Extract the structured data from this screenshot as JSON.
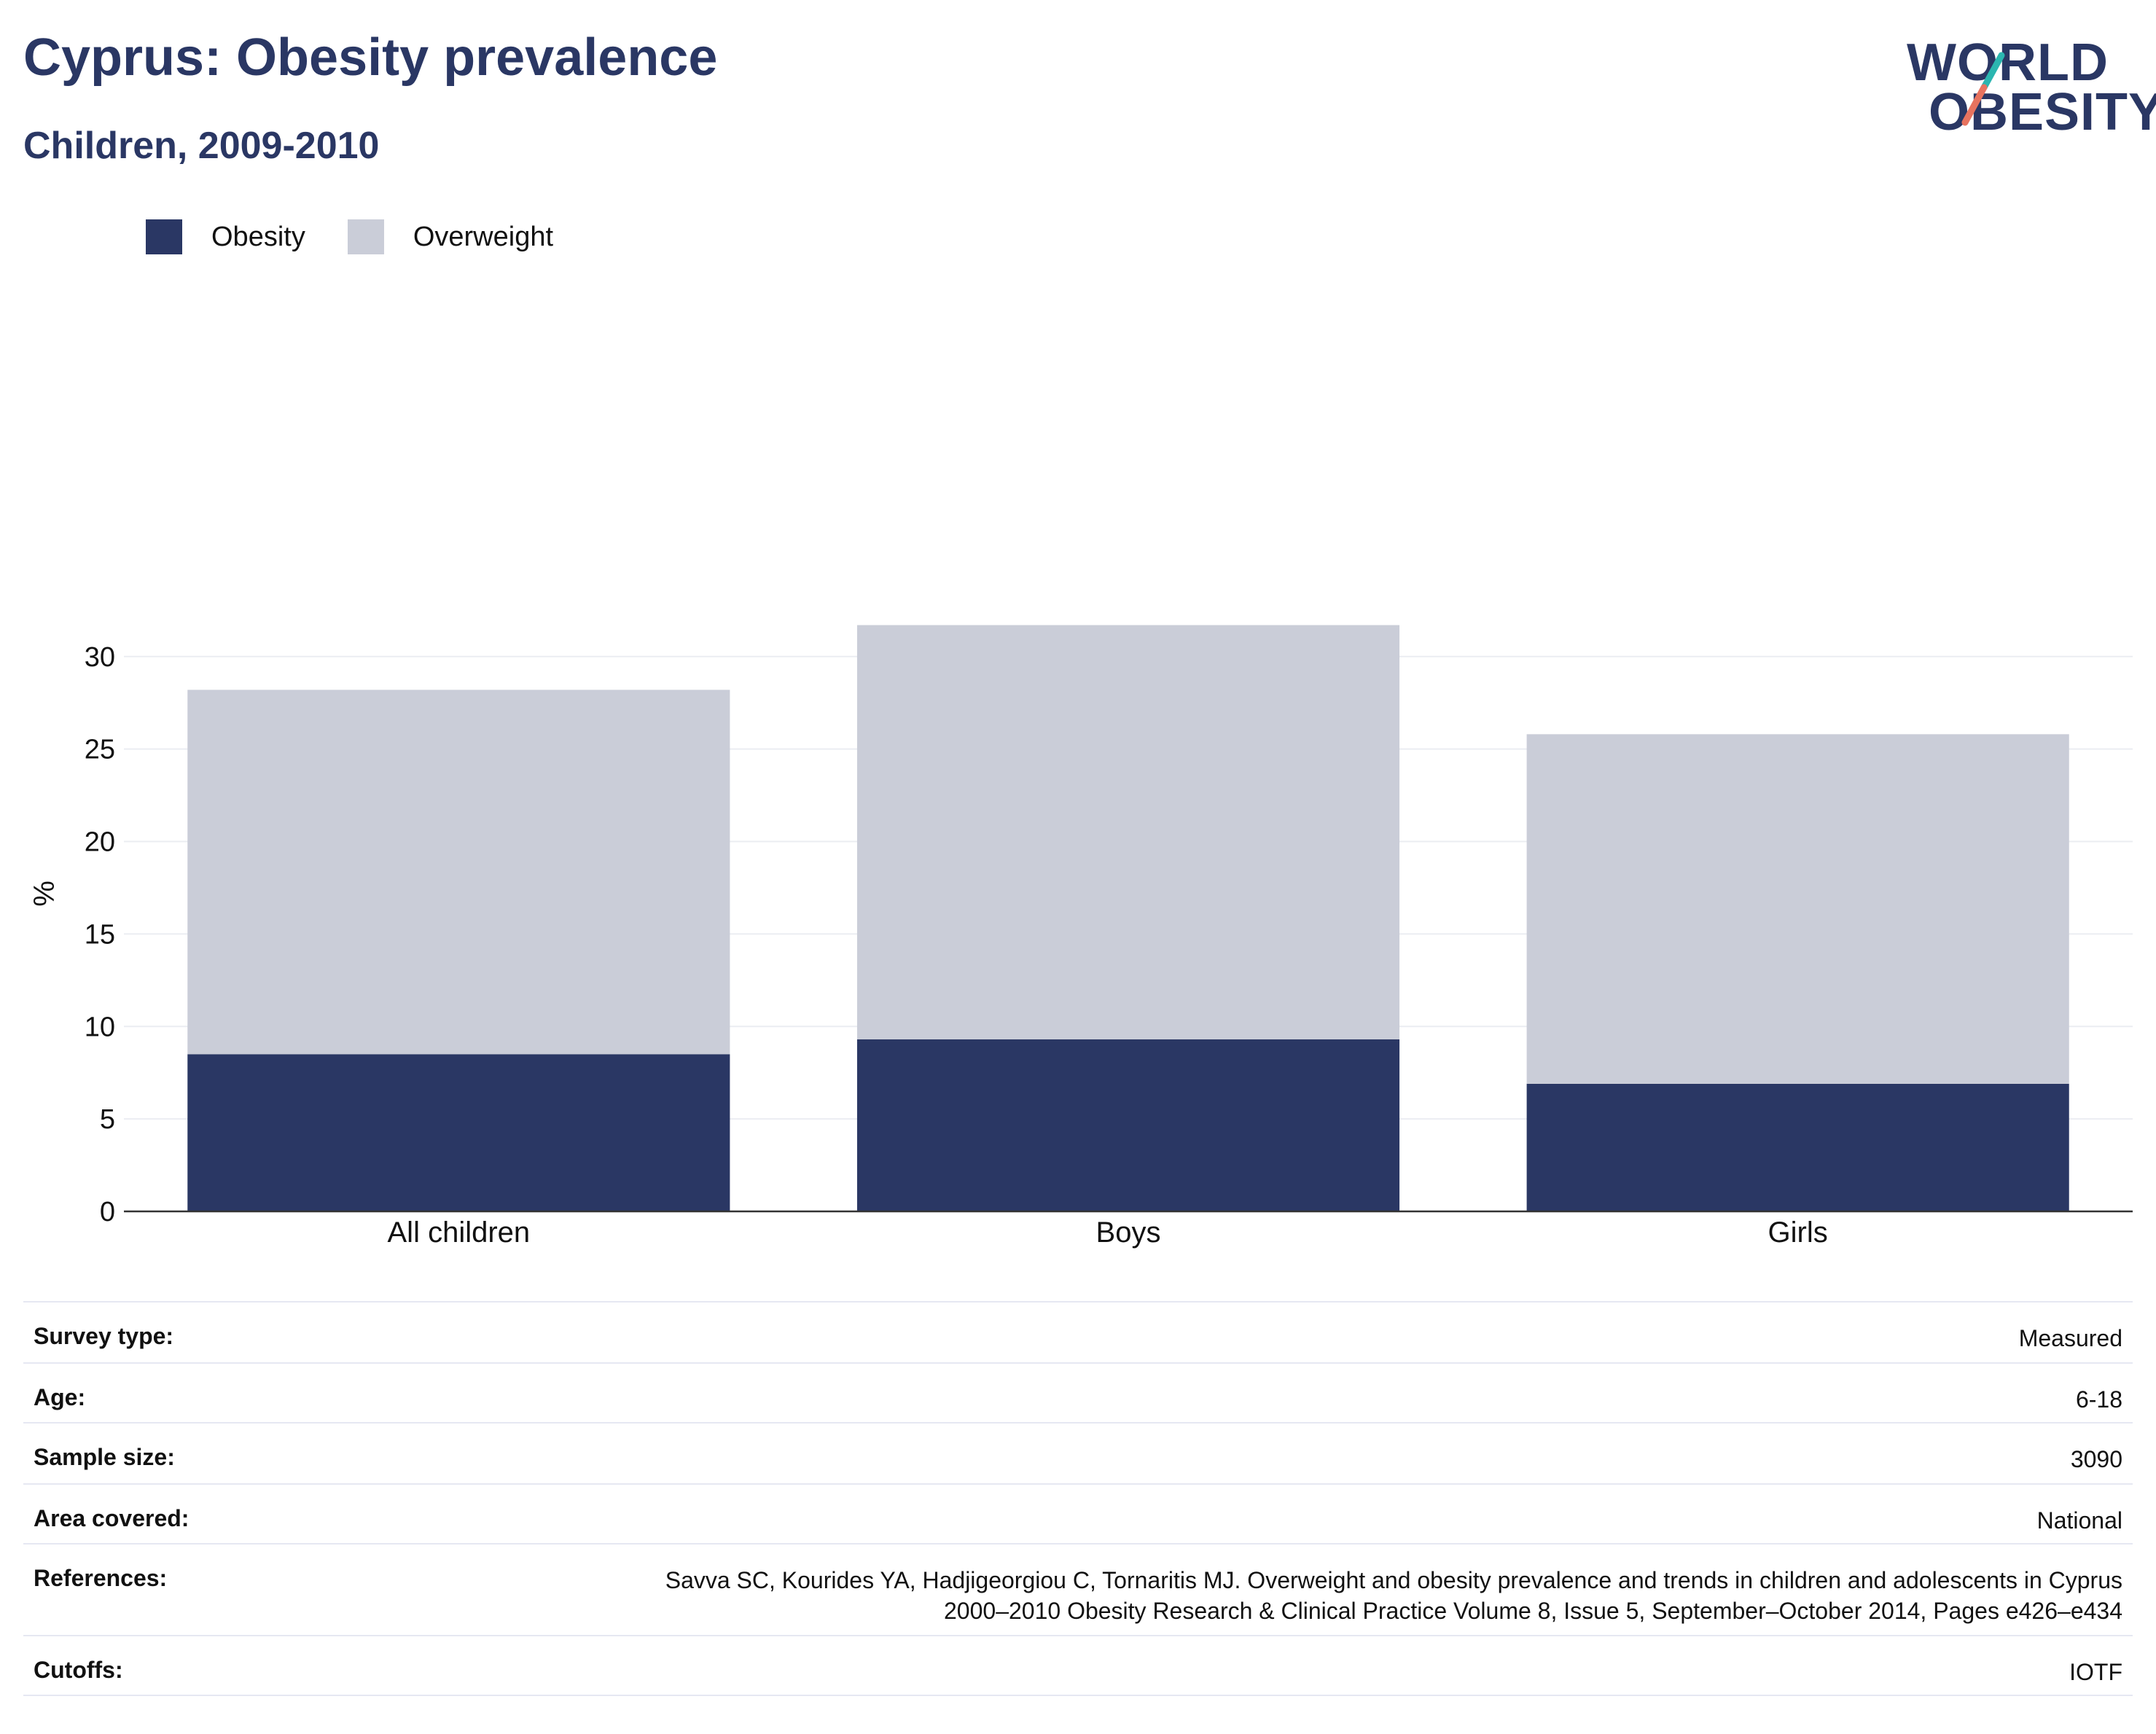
{
  "title": "Cyprus: Obesity prevalence",
  "subtitle": "Children, 2009-2010",
  "logo": {
    "line1": "WORLD",
    "line2": "OBESITY",
    "accent_teal": "#2bb6b0",
    "accent_coral": "#e8735f"
  },
  "legend": [
    {
      "label": "Obesity",
      "color": "#2a3764"
    },
    {
      "label": "Overweight",
      "color": "#cacdd8"
    }
  ],
  "chart_data": {
    "type": "bar",
    "stacked": true,
    "categories": [
      "All children",
      "Boys",
      "Girls"
    ],
    "series": [
      {
        "name": "Obesity",
        "values": [
          8.5,
          9.3,
          6.9
        ],
        "color": "#2a3764"
      },
      {
        "name": "Overweight",
        "values": [
          19.7,
          22.4,
          18.9
        ],
        "color": "#cacdd8"
      }
    ],
    "ylabel": "%",
    "ylim": [
      0,
      32
    ],
    "yticks": [
      0,
      5,
      10,
      15,
      20,
      25,
      30
    ],
    "grid": true,
    "legend_position": "top-left"
  },
  "info": [
    {
      "label": "Survey type:",
      "value": "Measured"
    },
    {
      "label": "Age:",
      "value": "6-18"
    },
    {
      "label": "Sample size:",
      "value": "3090"
    },
    {
      "label": "Area covered:",
      "value": "National"
    },
    {
      "label": "References:",
      "value": "Savva SC, Kourides YA, Hadjigeorgiou C, Tornaritis MJ. Overweight and obesity prevalence and trends in children and adolescents in Cyprus 2000–2010 Obesity Research & Clinical Practice Volume 8, Issue 5, September–October 2014, Pages e426–e434"
    },
    {
      "label": "Cutoffs:",
      "value": "IOTF"
    }
  ]
}
